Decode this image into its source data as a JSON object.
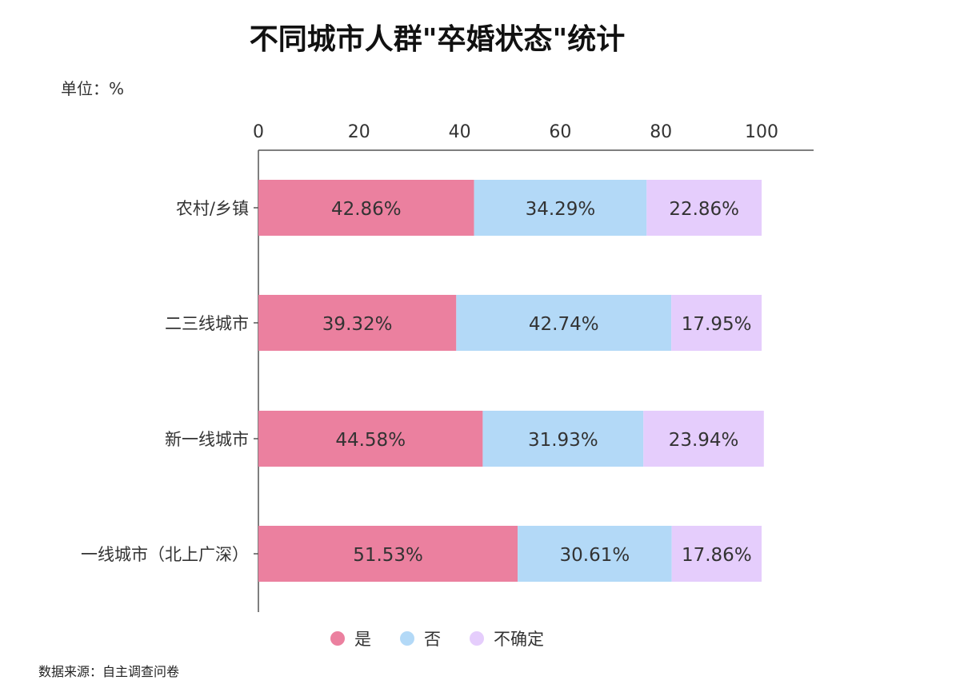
{
  "chart_data": {
    "type": "bar",
    "orientation": "horizontal",
    "stacked": true,
    "title": "不同城市人群\"卒婚状态\"统计",
    "unit_label": "单位：%",
    "source": "数据来源：自主调查问卷",
    "xlim": [
      0,
      100
    ],
    "x_ticks": [
      "0",
      "20",
      "40",
      "60",
      "80",
      "100"
    ],
    "categories": [
      "农村/乡镇",
      "二三线城市",
      "新一线城市",
      "一线城市（北上广深）"
    ],
    "series": [
      {
        "name": "是",
        "color": "#eb809f",
        "values": [
          42.86,
          39.32,
          44.58,
          51.53
        ],
        "labels": [
          "42.86%",
          "39.32%",
          "44.58%",
          "51.53%"
        ]
      },
      {
        "name": "否",
        "color": "#b3d9f7",
        "values": [
          34.29,
          42.74,
          31.93,
          30.61
        ],
        "labels": [
          "34.29%",
          "42.74%",
          "31.93%",
          "30.61%"
        ]
      },
      {
        "name": "不确定",
        "color": "#e5cdfc",
        "values": [
          22.86,
          17.95,
          23.94,
          17.86
        ],
        "labels": [
          "22.86%",
          "17.95%",
          "23.94%",
          "17.86%"
        ]
      }
    ],
    "legend_position": "bottom",
    "grid": false
  }
}
